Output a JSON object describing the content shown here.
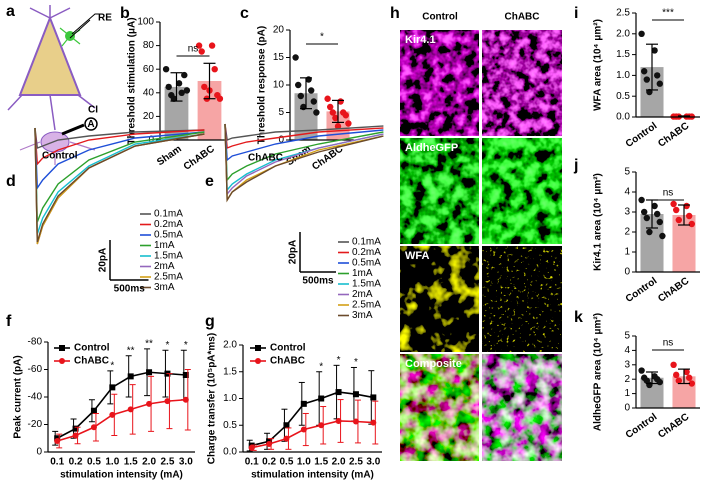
{
  "schematic": {
    "label": "a",
    "labels": [
      "RE",
      "CI",
      "A"
    ]
  },
  "images": {
    "label": "h",
    "columns": [
      "Control",
      "ChABC"
    ],
    "rows": [
      "Kir4.1",
      "AldheGFP",
      "WFA",
      "Composite"
    ]
  },
  "chart_data": [
    {
      "type": "bar",
      "label": "b",
      "ylabel": "Threshold stimulation (μA)",
      "categories": [
        "Sham",
        "ChABC"
      ],
      "values": [
        45,
        50
      ],
      "errors": [
        12,
        15
      ],
      "bar_colors": [
        "#a6a6a6",
        "#f6a5a5"
      ],
      "point_colors": [
        "#111111",
        "#e8141b"
      ],
      "points": [
        [
          60,
          48,
          45,
          40,
          38,
          55,
          35,
          42
        ],
        [
          80,
          80,
          75,
          60,
          45,
          38,
          35,
          35,
          42
        ]
      ],
      "ylim": [
        0,
        100
      ],
      "yticks": [
        0,
        20,
        40,
        60,
        80,
        100
      ],
      "significance": "ns"
    },
    {
      "type": "bar",
      "label": "c",
      "ylabel": "Threshold response (pA)",
      "categories": [
        "Sham",
        "ChABC"
      ],
      "values": [
        8.5,
        5.2
      ],
      "errors": [
        2.8,
        2
      ],
      "bar_colors": [
        "#a6a6a6",
        "#f6a5a5"
      ],
      "point_colors": [
        "#111111",
        "#e8141b"
      ],
      "points": [
        [
          15,
          11,
          10,
          9,
          8,
          7,
          6,
          5
        ],
        [
          7.5,
          7,
          6,
          5,
          5,
          4.5,
          4,
          3,
          2.5
        ]
      ],
      "ylim": [
        0,
        20
      ],
      "yticks": [
        0,
        5,
        10,
        15,
        20
      ],
      "significance": "*"
    },
    {
      "type": "trace",
      "label": "d",
      "title": "Control",
      "x": [
        0,
        30,
        100,
        300,
        700,
        1300,
        2200
      ],
      "series": [
        {
          "name": "0.1mA",
          "color": "#555555",
          "values": [
            0,
            -10,
            -9,
            -6,
            -4,
            -2,
            -1
          ]
        },
        {
          "name": "0.2mA",
          "color": "#e31a1c",
          "values": [
            0,
            -18,
            -15,
            -11,
            -6,
            -3,
            -1
          ]
        },
        {
          "name": "0.5mA",
          "color": "#1f4fd8",
          "values": [
            0,
            -30,
            -26,
            -18,
            -11,
            -5,
            -2
          ]
        },
        {
          "name": "1mA",
          "color": "#2ca02c",
          "values": [
            0,
            -47,
            -40,
            -28,
            -16,
            -7,
            -2
          ]
        },
        {
          "name": "1.5mA",
          "color": "#17becf",
          "values": [
            0,
            -53,
            -45,
            -32,
            -19,
            -8,
            -3
          ]
        },
        {
          "name": "2mA",
          "color": "#9467bd",
          "values": [
            0,
            -58,
            -49,
            -35,
            -20,
            -9,
            -3
          ]
        },
        {
          "name": "2.5mA",
          "color": "#d4a017",
          "values": [
            0,
            -58,
            -49,
            -35,
            -20,
            -9,
            -3
          ]
        },
        {
          "name": "3mA",
          "color": "#6b4a2b",
          "values": [
            0,
            -57,
            -48,
            -34,
            -20,
            -9,
            -3
          ]
        }
      ],
      "scalebar": {
        "y": {
          "value": 20,
          "label": "20pA"
        },
        "x": {
          "value": 500,
          "label": "500ms"
        }
      }
    },
    {
      "type": "trace",
      "label": "e",
      "title": "ChABC",
      "x": [
        0,
        30,
        100,
        300,
        700,
        1300,
        2200
      ],
      "series": [
        {
          "name": "0.1mA",
          "color": "#555555",
          "values": [
            0,
            -8,
            -7,
            -6,
            -4,
            -3,
            -1
          ]
        },
        {
          "name": "0.2mA",
          "color": "#e31a1c",
          "values": [
            0,
            -12,
            -11,
            -9,
            -7,
            -4,
            -2
          ]
        },
        {
          "name": "0.5mA",
          "color": "#1f4fd8",
          "values": [
            0,
            -18,
            -16,
            -14,
            -10,
            -6,
            -3
          ]
        },
        {
          "name": "1mA",
          "color": "#2ca02c",
          "values": [
            0,
            -28,
            -25,
            -21,
            -15,
            -10,
            -4
          ]
        },
        {
          "name": "1.5mA",
          "color": "#17becf",
          "values": [
            0,
            -33,
            -30,
            -25,
            -18,
            -12,
            -5
          ]
        },
        {
          "name": "2mA",
          "color": "#9467bd",
          "values": [
            0,
            -35,
            -32,
            -26,
            -19,
            -12,
            -5
          ]
        },
        {
          "name": "2.5mA",
          "color": "#d4a017",
          "values": [
            0,
            -38,
            -34,
            -28,
            -21,
            -13,
            -6
          ]
        },
        {
          "name": "3mA",
          "color": "#6b4a2b",
          "values": [
            0,
            -38,
            -34,
            -29,
            -21,
            -14,
            -6
          ]
        }
      ],
      "scalebar": {
        "y": {
          "value": 20,
          "label": "20pA"
        },
        "x": {
          "value": 500,
          "label": "500ms"
        }
      }
    },
    {
      "type": "line",
      "label": "f",
      "ylabel": "Peak current (pA)",
      "xlabel": "stimulation intensity (mA)",
      "categories": [
        "0.1",
        "0.2",
        "0.5",
        "1.0",
        "1.5",
        "2.0",
        "2.5",
        "3.0"
      ],
      "series": [
        {
          "name": "Control",
          "color": "#000000",
          "marker": "square",
          "values": [
            -10,
            -17,
            -30,
            -47,
            -55,
            -58,
            -57,
            -56
          ],
          "errors": [
            5,
            7,
            8,
            12,
            15,
            17,
            17,
            18
          ]
        },
        {
          "name": "ChABC",
          "color": "#e8141b",
          "marker": "circle",
          "values": [
            -8,
            -12,
            -18,
            -27,
            -31,
            -35,
            -37,
            -38
          ],
          "errors": [
            5,
            6,
            10,
            15,
            18,
            20,
            20,
            22
          ]
        }
      ],
      "annotations": [
        null,
        null,
        null,
        "*",
        "**",
        "**",
        "*",
        "*"
      ],
      "ylim": [
        0,
        -80
      ],
      "yticks": [
        0,
        -20,
        -40,
        -60,
        -80
      ]
    },
    {
      "type": "line",
      "label": "g",
      "ylabel": "Charge transfer (10⁵pA*ms)",
      "xlabel": "stimulation intensity (mA)",
      "categories": [
        "0.1",
        "0.2",
        "0.5",
        "1.0",
        "1.5",
        "2.0",
        "2.5",
        "3.0"
      ],
      "series": [
        {
          "name": "Control",
          "color": "#000000",
          "marker": "square",
          "values": [
            0.12,
            0.2,
            0.5,
            0.9,
            1.0,
            1.12,
            1.08,
            1.02
          ],
          "errors": [
            0.1,
            0.15,
            0.3,
            0.4,
            0.5,
            0.5,
            0.5,
            0.5
          ]
        },
        {
          "name": "ChABC",
          "color": "#e8141b",
          "marker": "circle",
          "values": [
            0.08,
            0.15,
            0.25,
            0.42,
            0.5,
            0.58,
            0.57,
            0.55
          ],
          "errors": [
            0.05,
            0.1,
            0.2,
            0.3,
            0.35,
            0.4,
            0.4,
            0.4
          ]
        }
      ],
      "annotations": [
        null,
        null,
        null,
        null,
        "*",
        "*",
        "*",
        null
      ],
      "ylim": [
        0,
        2
      ],
      "yticks": [
        {
          "value": 0,
          "label": "0.0"
        },
        0.5,
        {
          "value": 1,
          "label": "1.0"
        },
        1.5,
        {
          "value": 2,
          "label": "2.0"
        }
      ]
    },
    {
      "type": "bar",
      "label": "i",
      "ylabel": "WFA area (10⁴ μm²)",
      "categories": [
        "Control",
        "ChABC"
      ],
      "values": [
        1.2,
        0.02
      ],
      "errors": [
        0.55,
        0.005
      ],
      "bar_colors": [
        "#a6a6a6",
        "#f6a5a5"
      ],
      "point_colors": [
        "#111111",
        "#e8141b"
      ],
      "points": [
        [
          2.0,
          1.6,
          1.1,
          1.0,
          0.9,
          0.8,
          0.6
        ],
        [
          0.01,
          0.01,
          0.01,
          0.01,
          0.01,
          0.01
        ]
      ],
      "ylim": [
        0,
        2.5
      ],
      "yticks": [
        {
          "value": 0,
          "label": "0.0"
        },
        0.5,
        {
          "value": 1,
          "label": "1.0"
        },
        1.5,
        {
          "value": 2,
          "label": "2.0"
        },
        2.5
      ],
      "significance": "***"
    },
    {
      "type": "bar",
      "label": "j",
      "ylabel": "Kir4.1 area (10⁴ μm²)",
      "categories": [
        "Control",
        "ChABC"
      ],
      "values": [
        2.9,
        2.85
      ],
      "errors": [
        0.7,
        0.5
      ],
      "bar_colors": [
        "#a6a6a6",
        "#f6a5a5"
      ],
      "point_colors": [
        "#111111",
        "#e8141b"
      ],
      "points": [
        [
          3.6,
          3.3,
          3.0,
          2.9,
          2.7,
          2.5,
          2.0,
          1.8
        ],
        [
          3.4,
          3.3,
          3.1,
          2.8,
          2.6,
          2.4
        ]
      ],
      "ylim": [
        0,
        5
      ],
      "yticks": [
        0,
        1,
        2,
        3,
        4,
        5
      ],
      "significance": "ns"
    },
    {
      "type": "bar",
      "label": "k",
      "ylabel": "AldheGFP area (10⁴ μm²)",
      "categories": [
        "Control",
        "ChABC"
      ],
      "values": [
        2.1,
        2.2
      ],
      "errors": [
        0.4,
        0.5
      ],
      "bar_colors": [
        "#a6a6a6",
        "#f6a5a5"
      ],
      "point_colors": [
        "#111111",
        "#e8141b"
      ],
      "points": [
        [
          2.6,
          2.2,
          2.1,
          2.0,
          1.9,
          1.8,
          1.6
        ],
        [
          3.0,
          2.5,
          2.3,
          2.1,
          1.9,
          1.7
        ]
      ],
      "ylim": [
        0,
        5
      ],
      "yticks": [
        0,
        1,
        2,
        3,
        4,
        5
      ],
      "significance": "ns"
    }
  ]
}
